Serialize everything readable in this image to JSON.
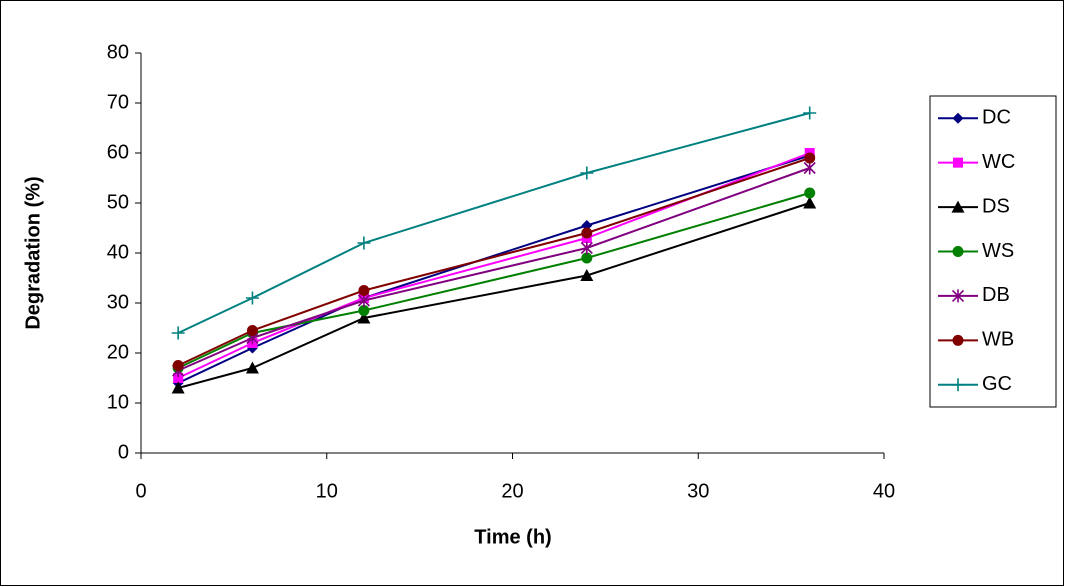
{
  "chart_data": {
    "type": "line",
    "x_label": "Time (h)",
    "y_label": "Degradation (%)",
    "x": [
      2,
      6,
      12,
      24,
      36
    ],
    "series": [
      {
        "name": "DC",
        "color": "#000080",
        "marker": "diamond",
        "values": [
          14,
          21,
          31,
          45.5,
          59.5
        ]
      },
      {
        "name": "WC",
        "color": "#ff00ff",
        "marker": "square",
        "values": [
          15,
          22,
          31,
          43,
          60
        ]
      },
      {
        "name": "DS",
        "color": "#000000",
        "marker": "triangle",
        "values": [
          13,
          17,
          27,
          35.5,
          50
        ]
      },
      {
        "name": "WS",
        "color": "#008000",
        "marker": "circle",
        "values": [
          17,
          24,
          28.5,
          39,
          52
        ]
      },
      {
        "name": "DB",
        "color": "#800080",
        "marker": "star",
        "values": [
          16.5,
          23,
          30.5,
          41,
          57
        ]
      },
      {
        "name": "WB",
        "color": "#800000",
        "marker": "circle",
        "values": [
          17.5,
          24.5,
          32.5,
          44,
          59
        ]
      },
      {
        "name": "GC",
        "color": "#008080",
        "marker": "plus",
        "values": [
          24,
          31,
          42,
          56,
          68
        ]
      }
    ],
    "xlim": [
      0,
      40
    ],
    "xticks": [
      0,
      10,
      20,
      30,
      40
    ],
    "ylim": [
      0,
      80
    ],
    "yticks": [
      0,
      10,
      20,
      30,
      40,
      50,
      60,
      70,
      80
    ],
    "grid": false,
    "legend": "right"
  }
}
